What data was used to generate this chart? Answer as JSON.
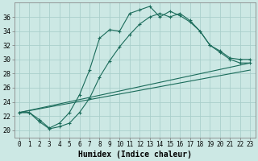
{
  "xlabel": "Humidex (Indice chaleur)",
  "background_color": "#cce8e4",
  "grid_color": "#aacfcb",
  "line_color": "#1a6b5a",
  "xlim": [
    -0.5,
    23.5
  ],
  "ylim": [
    19.0,
    38.0
  ],
  "yticks": [
    20,
    22,
    24,
    26,
    28,
    30,
    32,
    34,
    36
  ],
  "xticks": [
    0,
    1,
    2,
    3,
    4,
    5,
    6,
    7,
    8,
    9,
    10,
    11,
    12,
    13,
    14,
    15,
    16,
    17,
    18,
    19,
    20,
    21,
    22,
    23
  ],
  "series": [
    {
      "x": [
        0,
        1,
        2,
        3,
        4,
        5,
        6,
        7,
        8,
        9,
        10,
        11,
        12,
        13,
        14,
        15,
        16,
        17,
        18,
        19,
        20,
        21,
        22,
        23
      ],
      "y": [
        22.5,
        22.5,
        21.5,
        20.3,
        21.0,
        22.5,
        25.0,
        28.5,
        33.0,
        34.2,
        34.0,
        36.5,
        37.0,
        37.5,
        36.0,
        36.8,
        36.2,
        35.3,
        34.0,
        32.0,
        31.2,
        30.2,
        30.0,
        30.0
      ]
    },
    {
      "x": [
        0,
        1,
        2,
        3,
        4,
        5,
        6,
        7,
        8,
        9,
        10,
        11,
        12,
        13,
        14,
        15,
        16,
        17,
        18,
        19,
        20,
        21,
        22,
        23
      ],
      "y": [
        22.5,
        22.5,
        21.2,
        20.2,
        20.5,
        21.0,
        22.5,
        24.5,
        27.5,
        29.8,
        31.8,
        33.5,
        35.0,
        36.0,
        36.5,
        36.0,
        36.5,
        35.5,
        34.0,
        32.0,
        31.0,
        30.0,
        29.5,
        29.5
      ]
    },
    {
      "x": [
        0,
        23
      ],
      "y": [
        22.5,
        29.5
      ]
    },
    {
      "x": [
        0,
        23
      ],
      "y": [
        22.5,
        28.5
      ]
    }
  ],
  "tick_fontsize": 5.5,
  "xlabel_fontsize": 7
}
